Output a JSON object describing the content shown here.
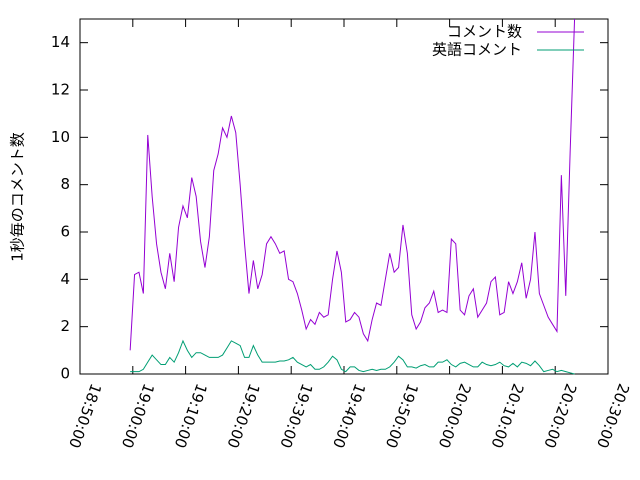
{
  "chart_data": {
    "type": "line",
    "ylabel": "1秒毎のコメント数",
    "x": [
      "18:59:30",
      "19:00:20",
      "19:01:10",
      "19:02:00",
      "19:02:50",
      "19:03:40",
      "19:04:30",
      "19:05:20",
      "19:06:10",
      "19:07:00",
      "19:07:50",
      "19:08:40",
      "19:09:30",
      "19:10:20",
      "19:11:10",
      "19:12:00",
      "19:12:50",
      "19:13:40",
      "19:14:30",
      "19:15:20",
      "19:16:10",
      "19:17:00",
      "19:17:50",
      "19:18:40",
      "19:19:30",
      "19:20:20",
      "19:21:10",
      "19:22:00",
      "19:22:50",
      "19:23:40",
      "19:24:30",
      "19:25:20",
      "19:26:10",
      "19:27:00",
      "19:27:50",
      "19:28:40",
      "19:29:30",
      "19:30:20",
      "19:31:10",
      "19:32:00",
      "19:32:50",
      "19:33:40",
      "19:34:30",
      "19:35:20",
      "19:36:10",
      "19:37:00",
      "19:37:50",
      "19:38:40",
      "19:39:30",
      "19:40:20",
      "19:41:10",
      "19:42:00",
      "19:42:50",
      "19:43:40",
      "19:44:30",
      "19:45:20",
      "19:46:10",
      "19:47:00",
      "19:47:50",
      "19:48:40",
      "19:49:30",
      "19:50:20",
      "19:51:10",
      "19:52:00",
      "19:52:50",
      "19:53:40",
      "19:54:30",
      "19:55:20",
      "19:56:10",
      "19:57:00",
      "19:57:50",
      "19:58:40",
      "19:59:30",
      "20:00:20",
      "20:01:10",
      "20:02:00",
      "20:02:50",
      "20:03:40",
      "20:04:30",
      "20:05:20",
      "20:06:10",
      "20:07:00",
      "20:07:50",
      "20:08:40",
      "20:09:30",
      "20:10:20",
      "20:11:10",
      "20:12:00",
      "20:12:50",
      "20:13:40",
      "20:14:30",
      "20:15:20",
      "20:16:10",
      "20:17:00",
      "20:17:50",
      "20:18:40",
      "20:19:30",
      "20:20:20",
      "20:21:10",
      "20:22:00",
      "20:22:50",
      "20:23:40"
    ],
    "series": [
      {
        "name": "コメント数",
        "color": "#9400d3",
        "values": [
          1.0,
          4.2,
          4.3,
          3.4,
          10.1,
          7.5,
          5.5,
          4.3,
          3.6,
          5.1,
          3.9,
          6.2,
          7.1,
          6.6,
          8.3,
          7.5,
          5.6,
          4.5,
          5.8,
          8.6,
          9.3,
          10.4,
          10.0,
          10.9,
          10.2,
          8.0,
          5.5,
          3.4,
          4.8,
          3.6,
          4.2,
          5.5,
          5.8,
          5.5,
          5.1,
          5.2,
          4.0,
          3.9,
          3.4,
          2.7,
          1.9,
          2.3,
          2.1,
          2.6,
          2.4,
          2.5,
          4.0,
          5.2,
          4.3,
          2.2,
          2.3,
          2.6,
          2.4,
          1.7,
          1.4,
          2.3,
          3.0,
          2.9,
          4.0,
          5.1,
          4.3,
          4.5,
          6.3,
          5.1,
          2.5,
          1.9,
          2.2,
          2.8,
          3.0,
          3.5,
          2.6,
          2.7,
          2.6,
          5.7,
          5.5,
          2.7,
          2.5,
          3.3,
          3.6,
          2.4,
          2.7,
          3.0,
          3.9,
          4.1,
          2.5,
          2.6,
          3.9,
          3.4,
          3.9,
          4.7,
          3.2,
          4.0,
          6.0,
          3.4,
          2.9,
          2.4,
          2.1,
          1.8,
          8.4,
          3.3,
          9.4,
          15
        ]
      },
      {
        "name": "英語コメント",
        "color": "#009e73",
        "values": [
          0.1,
          0.1,
          0.1,
          0.2,
          0.5,
          0.8,
          0.6,
          0.4,
          0.4,
          0.7,
          0.5,
          0.9,
          1.4,
          1.0,
          0.7,
          0.9,
          0.9,
          0.8,
          0.7,
          0.7,
          0.7,
          0.8,
          1.1,
          1.4,
          1.3,
          1.2,
          0.7,
          0.7,
          1.2,
          0.8,
          0.5,
          0.5,
          0.5,
          0.5,
          0.55,
          0.55,
          0.6,
          0.7,
          0.5,
          0.4,
          0.3,
          0.4,
          0.2,
          0.2,
          0.3,
          0.5,
          0.75,
          0.6,
          0.2,
          0.1,
          0.3,
          0.3,
          0.15,
          0.1,
          0.15,
          0.2,
          0.15,
          0.2,
          0.2,
          0.3,
          0.5,
          0.75,
          0.6,
          0.3,
          0.3,
          0.25,
          0.35,
          0.4,
          0.3,
          0.3,
          0.5,
          0.5,
          0.6,
          0.4,
          0.3,
          0.45,
          0.5,
          0.4,
          0.3,
          0.3,
          0.5,
          0.4,
          0.35,
          0.4,
          0.5,
          0.35,
          0.3,
          0.45,
          0.3,
          0.5,
          0.45,
          0.35,
          0.55,
          0.35,
          0.1,
          0.15,
          0.2,
          0.1,
          0.15,
          0.1,
          0.05,
          0.0
        ]
      }
    ],
    "xlim": [
      "18:50:00",
      "20:30:00"
    ],
    "xticks": [
      "18:50:00",
      "19:00:00",
      "19:10:00",
      "19:20:00",
      "19:30:00",
      "19:40:00",
      "19:50:00",
      "20:00:00",
      "20:10:00",
      "20:20:00",
      "20:30:00"
    ],
    "ylim": [
      0,
      15
    ],
    "yticks": [
      0,
      2,
      4,
      6,
      8,
      10,
      12,
      14
    ],
    "grid": false,
    "legend": "top-right"
  }
}
